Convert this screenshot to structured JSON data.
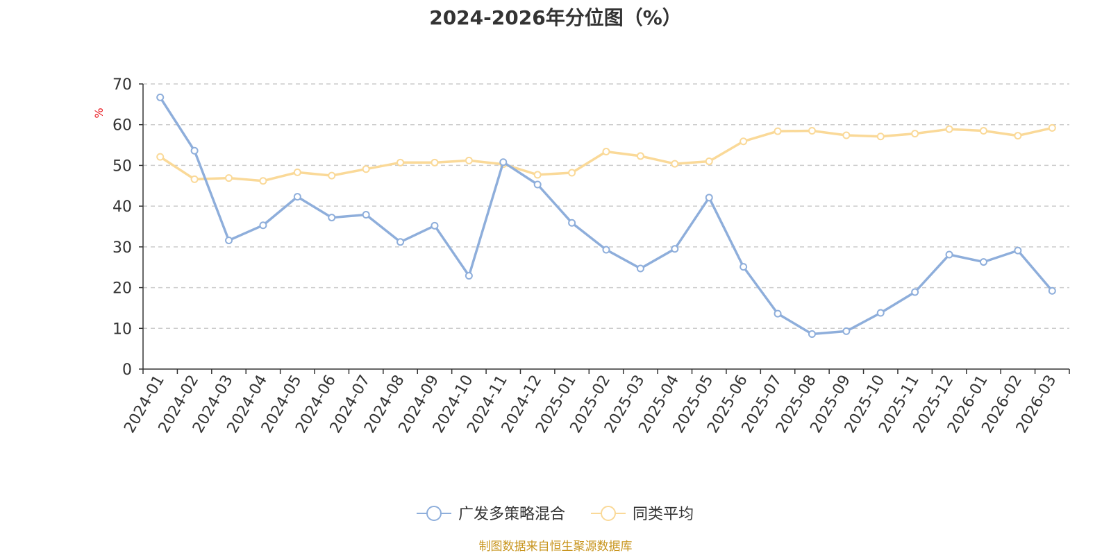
{
  "chart_data": {
    "type": "line",
    "title": "2024-2026年分位图（%）",
    "ylabel": "%",
    "xlabel": "",
    "ylim": [
      0,
      70
    ],
    "yticks": [
      0,
      10,
      20,
      30,
      40,
      50,
      60,
      70
    ],
    "grid": "horizontal-dashed",
    "legend_position": "bottom",
    "categories": [
      "2024-01",
      "2024-02",
      "2024-03",
      "2024-04",
      "2024-05",
      "2024-06",
      "2024-07",
      "2024-08",
      "2024-09",
      "2024-10",
      "2024-11",
      "2024-12",
      "2025-01",
      "2025-02",
      "2025-03",
      "2025-04",
      "2025-05",
      "2025-06",
      "2025-07",
      "2025-08",
      "2025-09",
      "2025-10",
      "2025-11",
      "2025-12",
      "2026-01",
      "2026-02",
      "2026-03"
    ],
    "series": [
      {
        "name": "广发多策略混合",
        "color": "#8eaedb",
        "values": [
          66.7,
          53.6,
          31.6,
          35.3,
          42.3,
          37.2,
          37.9,
          31.2,
          35.2,
          22.9,
          50.8,
          45.3,
          35.9,
          29.3,
          24.7,
          29.5,
          42.1,
          25.1,
          13.6,
          8.6,
          9.3,
          13.8,
          18.9,
          28.1,
          26.3,
          29.1,
          19.2
        ]
      },
      {
        "name": "同类平均",
        "color": "#fad998",
        "values": [
          52.1,
          46.6,
          46.9,
          46.2,
          48.3,
          47.5,
          49.1,
          50.7,
          50.7,
          51.2,
          50.3,
          47.7,
          48.2,
          53.4,
          52.3,
          50.4,
          51.0,
          55.9,
          58.4,
          58.5,
          57.4,
          57.1,
          57.8,
          58.9,
          58.5,
          57.3,
          59.2
        ]
      }
    ]
  },
  "source_text": "制图数据来自恒生聚源数据库"
}
